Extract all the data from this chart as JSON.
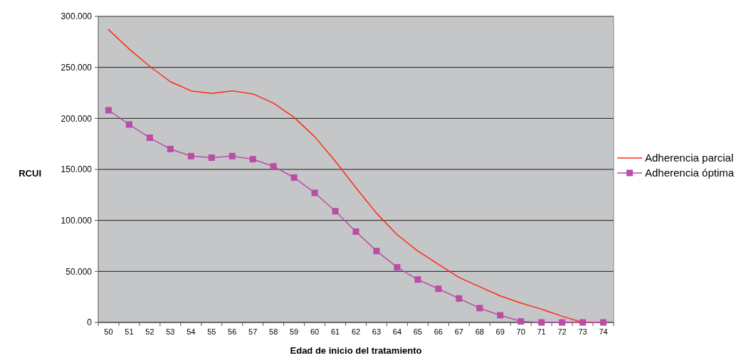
{
  "chart_data": {
    "type": "line",
    "xlabel": "Edad de inicio del tratamiento",
    "ylabel": "RCUI",
    "categories": [
      "50",
      "51",
      "52",
      "53",
      "54",
      "55",
      "56",
      "57",
      "58",
      "59",
      "60",
      "61",
      "62",
      "63",
      "64",
      "65",
      "66",
      "67",
      "68",
      "69",
      "70",
      "71",
      "72",
      "73",
      "74"
    ],
    "series": [
      {
        "name": "Adherencia parcial",
        "color": "#ff2a12",
        "marker": "none",
        "values": [
          287000,
          268000,
          251000,
          236000,
          227000,
          224500,
          227000,
          224000,
          215000,
          201000,
          182000,
          158000,
          132000,
          107000,
          86000,
          70000,
          57000,
          44000,
          35000,
          26000,
          19000,
          13000,
          6000,
          0,
          0
        ]
      },
      {
        "name": "Adherencia óptima",
        "color": "#b84ea6",
        "marker": "square",
        "values": [
          208000,
          194000,
          181000,
          170000,
          163000,
          161500,
          163000,
          160000,
          153000,
          142000,
          127000,
          109000,
          89000,
          70000,
          54000,
          42000,
          33000,
          23500,
          14000,
          7000,
          1000,
          0,
          0,
          0,
          0
        ]
      }
    ],
    "ylim": [
      0,
      300000
    ],
    "yticks": [
      {
        "value": 0,
        "label": "0"
      },
      {
        "value": 50000,
        "label": "50.000"
      },
      {
        "value": 100000,
        "label": "100.000"
      },
      {
        "value": 150000,
        "label": "150.000"
      },
      {
        "value": 200000,
        "label": "200.000"
      },
      {
        "value": 250000,
        "label": "250.000"
      },
      {
        "value": 300000,
        "label": "300.000"
      }
    ],
    "grid": "y",
    "legend": "right"
  }
}
